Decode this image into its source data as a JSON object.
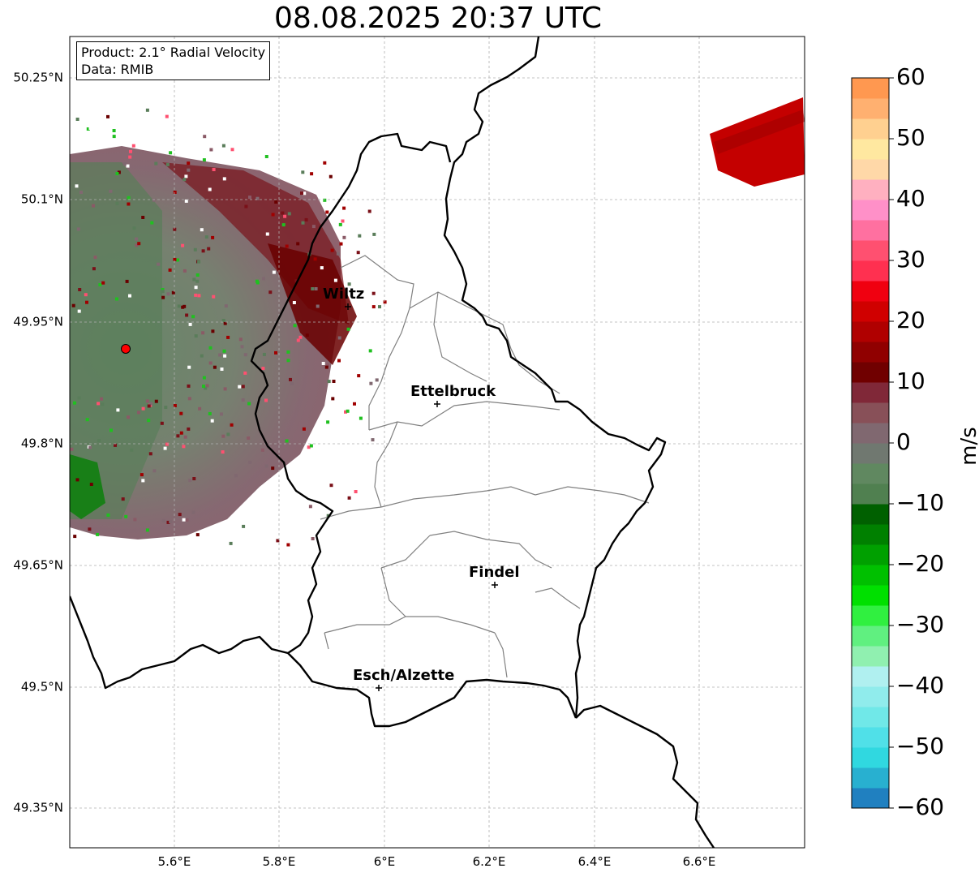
{
  "title": "08.08.2025 20:37 UTC",
  "info": {
    "product": "Product: 2.1° Radial Velocity",
    "data": "Data: RMIB"
  },
  "lat_labels": [
    "50.25°N",
    "50.1°N",
    "49.95°N",
    "49.8°N",
    "49.65°N",
    "49.5°N",
    "49.35°N"
  ],
  "lon_labels": [
    "5.6°E",
    "5.8°E",
    "6°E",
    "6.2°E",
    "6.4°E",
    "6.6°E"
  ],
  "cities": [
    {
      "name": "Wiltz"
    },
    {
      "name": "Ettelbruck"
    },
    {
      "name": "Findel"
    },
    {
      "name": "Esch/Alzette"
    }
  ],
  "colorbar": {
    "unit": "m/s",
    "ticks": [
      "60",
      "50",
      "40",
      "30",
      "20",
      "10",
      "0",
      "−10",
      "−20",
      "−30",
      "−40",
      "−50",
      "−60"
    ],
    "min": -60,
    "max": 60,
    "colors": [
      "#2080c0",
      "#28b0d0",
      "#30d8e0",
      "#50e0e8",
      "#70e8e8",
      "#90ecec",
      "#b0f0f0",
      "#90f0b0",
      "#60f080",
      "#30f040",
      "#00e000",
      "#00c000",
      "#00a000",
      "#008000",
      "#006000",
      "#508050",
      "#608860",
      "#707870",
      "#806870",
      "#885058",
      "#802838",
      "#700000",
      "#900000",
      "#b00000",
      "#d00000",
      "#f00010",
      "#ff3050",
      "#ff5070",
      "#ff70a0",
      "#ff90c8",
      "#ffb0c0",
      "#ffd8a8",
      "#ffe8a0",
      "#ffd090",
      "#ffb070",
      "#ff9850"
    ]
  },
  "colors": {
    "border": "#000000",
    "canton": "#808080",
    "grid": "#b0b0b0",
    "radar_site": "#ff0000"
  }
}
